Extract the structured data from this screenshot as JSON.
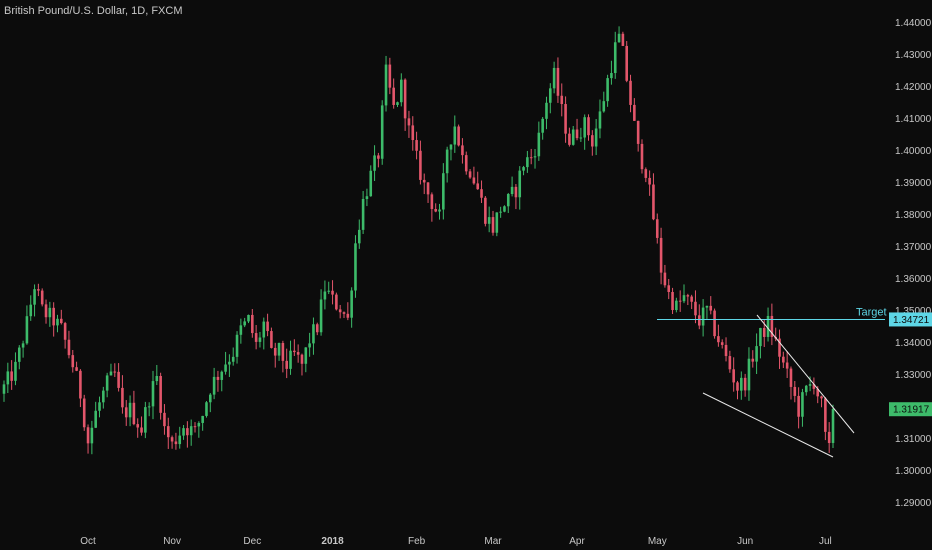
{
  "header": {
    "title": "British Pound/U.S. Dollar, 1D, FXCM"
  },
  "colors": {
    "background": "#0c0c0c",
    "up": "#3dbb6a",
    "down": "#e3566b",
    "target": "#5ed6e6",
    "wedge": "#e8e8e8",
    "axis_text": "#c8c8c8"
  },
  "annotations": {
    "target_label": "Target",
    "target_price": 1.34721,
    "target_price_label": "1.34721",
    "last_price": 1.31917,
    "last_price_label": "1.31917"
  },
  "chart_data": {
    "type": "candlestick",
    "y_axis": {
      "range": [
        1.283,
        1.447
      ],
      "ticks": [
        "1.29000",
        "1.30000",
        "1.31000",
        "1.32000",
        "1.33000",
        "1.34000",
        "1.35000",
        "1.36000",
        "1.37000",
        "1.38000",
        "1.39000",
        "1.40000",
        "1.41000",
        "1.42000",
        "1.43000",
        "1.44000"
      ]
    },
    "x_axis": {
      "labels": [
        {
          "label": "Oct",
          "index": 22
        },
        {
          "label": "Nov",
          "index": 44
        },
        {
          "label": "Dec",
          "index": 65
        },
        {
          "label": "2018",
          "index": 86,
          "bold": true
        },
        {
          "label": "Feb",
          "index": 108
        },
        {
          "label": "Mar",
          "index": 128
        },
        {
          "label": "Apr",
          "index": 150
        },
        {
          "label": "May",
          "index": 171
        },
        {
          "label": "Jun",
          "index": 194
        },
        {
          "label": "Jul",
          "index": 215
        }
      ]
    },
    "close_path": [
      [
        0,
        1.326
      ],
      [
        3,
        1.332
      ],
      [
        6,
        1.346
      ],
      [
        8,
        1.358
      ],
      [
        10,
        1.35
      ],
      [
        13,
        1.347
      ],
      [
        15,
        1.344
      ],
      [
        18,
        1.333
      ],
      [
        20,
        1.324
      ],
      [
        22,
        1.309
      ],
      [
        24,
        1.318
      ],
      [
        27,
        1.327
      ],
      [
        29,
        1.33
      ],
      [
        31,
        1.318
      ],
      [
        33,
        1.319
      ],
      [
        36,
        1.313
      ],
      [
        38,
        1.323
      ],
      [
        40,
        1.329
      ],
      [
        42,
        1.313
      ],
      [
        44,
        1.308
      ],
      [
        47,
        1.314
      ],
      [
        50,
        1.312
      ],
      [
        52,
        1.318
      ],
      [
        54,
        1.326
      ],
      [
        56,
        1.33
      ],
      [
        58,
        1.334
      ],
      [
        60,
        1.337
      ],
      [
        62,
        1.344
      ],
      [
        64,
        1.347
      ],
      [
        66,
        1.339
      ],
      [
        68,
        1.346
      ],
      [
        70,
        1.336
      ],
      [
        72,
        1.337
      ],
      [
        74,
        1.333
      ],
      [
        76,
        1.336
      ],
      [
        78,
        1.333
      ],
      [
        80,
        1.341
      ],
      [
        82,
        1.345
      ],
      [
        84,
        1.357
      ],
      [
        86,
        1.353
      ],
      [
        88,
        1.351
      ],
      [
        90,
        1.347
      ],
      [
        92,
        1.371
      ],
      [
        94,
        1.384
      ],
      [
        96,
        1.392
      ],
      [
        98,
        1.399
      ],
      [
        100,
        1.424
      ],
      [
        102,
        1.413
      ],
      [
        104,
        1.42
      ],
      [
        106,
        1.406
      ],
      [
        108,
        1.397
      ],
      [
        110,
        1.389
      ],
      [
        112,
        1.384
      ],
      [
        114,
        1.379
      ],
      [
        116,
        1.401
      ],
      [
        118,
        1.408
      ],
      [
        120,
        1.398
      ],
      [
        122,
        1.394
      ],
      [
        124,
        1.388
      ],
      [
        126,
        1.38
      ],
      [
        128,
        1.376
      ],
      [
        130,
        1.382
      ],
      [
        132,
        1.384
      ],
      [
        134,
        1.388
      ],
      [
        136,
        1.396
      ],
      [
        138,
        1.398
      ],
      [
        140,
        1.404
      ],
      [
        142,
        1.416
      ],
      [
        144,
        1.423
      ],
      [
        146,
        1.412
      ],
      [
        148,
        1.403
      ],
      [
        150,
        1.406
      ],
      [
        152,
        1.408
      ],
      [
        154,
        1.403
      ],
      [
        156,
        1.411
      ],
      [
        158,
        1.422
      ],
      [
        160,
        1.432
      ],
      [
        161,
        1.435
      ],
      [
        162,
        1.43
      ],
      [
        164,
        1.415
      ],
      [
        166,
        1.4
      ],
      [
        168,
        1.394
      ],
      [
        170,
        1.379
      ],
      [
        172,
        1.363
      ],
      [
        174,
        1.355
      ],
      [
        176,
        1.351
      ],
      [
        178,
        1.354
      ],
      [
        180,
        1.351
      ],
      [
        182,
        1.347
      ],
      [
        184,
        1.35
      ],
      [
        186,
        1.344
      ],
      [
        188,
        1.338
      ],
      [
        190,
        1.332
      ],
      [
        192,
        1.326
      ],
      [
        194,
        1.328
      ],
      [
        196,
        1.336
      ],
      [
        198,
        1.342
      ],
      [
        200,
        1.346
      ],
      [
        202,
        1.34
      ],
      [
        204,
        1.333
      ],
      [
        206,
        1.326
      ],
      [
        208,
        1.319
      ],
      [
        210,
        1.325
      ],
      [
        212,
        1.328
      ],
      [
        214,
        1.32
      ],
      [
        215,
        1.31
      ],
      [
        216,
        1.306
      ],
      [
        217,
        1.3192
      ]
    ]
  }
}
